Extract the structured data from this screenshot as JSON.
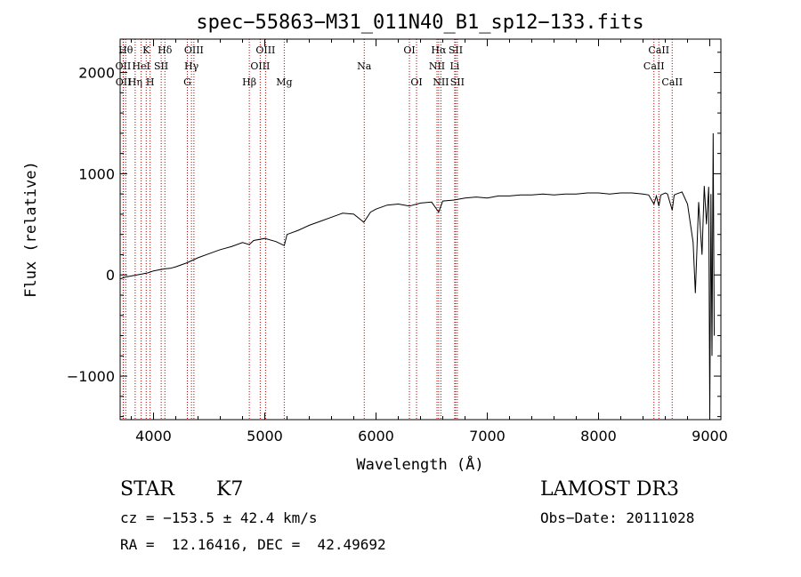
{
  "chart_data": {
    "type": "line",
    "title": "spec−55863−M31_011N40_B1_sp12−133.fits",
    "xlabel": "Wavelength (Å)",
    "ylabel": "Flux (relative)",
    "xlim": [
      3700,
      9100
    ],
    "ylim": [
      -1430,
      2330
    ],
    "xticks": [
      {
        "value": 4000,
        "label": "4000"
      },
      {
        "value": 5000,
        "label": "5000"
      },
      {
        "value": 6000,
        "label": "6000"
      },
      {
        "value": 7000,
        "label": "7000"
      },
      {
        "value": 8000,
        "label": "8000"
      },
      {
        "value": 9000,
        "label": "9000"
      }
    ],
    "yticks": [
      {
        "value": -1000,
        "label": "−1000"
      },
      {
        "value": 0,
        "label": "0"
      },
      {
        "value": 1000,
        "label": "1000"
      },
      {
        "value": 2000,
        "label": "2000"
      }
    ],
    "series": [
      {
        "name": "spectrum",
        "x": [
          3700,
          3750,
          3800,
          3850,
          3900,
          3950,
          4000,
          4050,
          4100,
          4150,
          4200,
          4300,
          4400,
          4500,
          4600,
          4700,
          4800,
          4861,
          4900,
          5000,
          5100,
          5175,
          5200,
          5300,
          5400,
          5500,
          5600,
          5700,
          5800,
          5890,
          5950,
          6000,
          6100,
          6200,
          6300,
          6400,
          6500,
          6563,
          6600,
          6700,
          6800,
          6900,
          7000,
          7100,
          7200,
          7300,
          7400,
          7500,
          7600,
          7700,
          7800,
          7900,
          8000,
          8100,
          8200,
          8300,
          8400,
          8450,
          8498,
          8520,
          8542,
          8560,
          8600,
          8620,
          8662,
          8680,
          8700,
          8750,
          8800,
          8850,
          8870,
          8900,
          8930,
          8950,
          8970,
          8990,
          9000,
          9010,
          9020,
          9030,
          9040
        ],
        "y": [
          -40,
          -20,
          -10,
          0,
          10,
          20,
          40,
          50,
          60,
          65,
          80,
          120,
          170,
          210,
          250,
          280,
          320,
          300,
          340,
          360,
          330,
          290,
          400,
          440,
          490,
          530,
          570,
          610,
          600,
          520,
          620,
          650,
          690,
          700,
          680,
          710,
          720,
          620,
          730,
          740,
          760,
          770,
          760,
          780,
          780,
          790,
          790,
          800,
          790,
          800,
          800,
          810,
          810,
          800,
          810,
          810,
          800,
          790,
          700,
          780,
          680,
          790,
          810,
          800,
          640,
          790,
          800,
          820,
          700,
          320,
          -180,
          720,
          200,
          880,
          500,
          870,
          -1400,
          800,
          -800,
          1400,
          -600
        ]
      }
    ],
    "lines": [
      {
        "wl": 3750,
        "label": "Hθ",
        "row": 0
      },
      {
        "wl": 3727,
        "label": "OII",
        "row": 1
      },
      {
        "wl": 3729,
        "label": "OII",
        "row": 2
      },
      {
        "wl": 3835,
        "label": "Hη",
        "row": 2
      },
      {
        "wl": 3889,
        "label": "HeI",
        "row": 1
      },
      {
        "wl": 3934,
        "label": "K",
        "row": 0
      },
      {
        "wl": 3969,
        "label": "H",
        "row": 2
      },
      {
        "wl": 4069,
        "label": "SII",
        "row": 1
      },
      {
        "wl": 4102,
        "label": "Hδ",
        "row": 0
      },
      {
        "wl": 4304,
        "label": "G",
        "row": 2
      },
      {
        "wl": 4341,
        "label": "Hγ",
        "row": 1
      },
      {
        "wl": 4363,
        "label": "OIII",
        "row": 0
      },
      {
        "wl": 4861,
        "label": "Hβ",
        "row": 2
      },
      {
        "wl": 4959,
        "label": "OIII",
        "row": 1
      },
      {
        "wl": 5007,
        "label": "OIII",
        "row": 0
      },
      {
        "wl": 5175,
        "label": "Mg",
        "row": 2
      },
      {
        "wl": 5894,
        "label": "Na",
        "row": 1
      },
      {
        "wl": 6300,
        "label": "OI",
        "row": 0
      },
      {
        "wl": 6364,
        "label": "OI",
        "row": 2
      },
      {
        "wl": 6548,
        "label": "NII",
        "row": 1
      },
      {
        "wl": 6563,
        "label": "Hα",
        "row": 0
      },
      {
        "wl": 6583,
        "label": "NII",
        "row": 2
      },
      {
        "wl": 6707,
        "label": "Li",
        "row": 1
      },
      {
        "wl": 6716,
        "label": "SII",
        "row": 0
      },
      {
        "wl": 6731,
        "label": "SII",
        "row": 2
      },
      {
        "wl": 8498,
        "label": "CaII",
        "row": 1
      },
      {
        "wl": 8542,
        "label": "CaII",
        "row": 0
      },
      {
        "wl": 8662,
        "label": "CaII",
        "row": 2
      }
    ]
  },
  "info": {
    "object_class": "STAR",
    "subclass": "K7",
    "survey": "LAMOST DR3",
    "cz": "cz = −153.5 ± 42.4 km/s",
    "obs_date": "Obs−Date: 20111028",
    "coords": "RA =  12.16416, DEC =  42.49692"
  },
  "colors": {
    "line_marker": "#b00000",
    "spectrum": "#000000",
    "axis": "#000000"
  }
}
